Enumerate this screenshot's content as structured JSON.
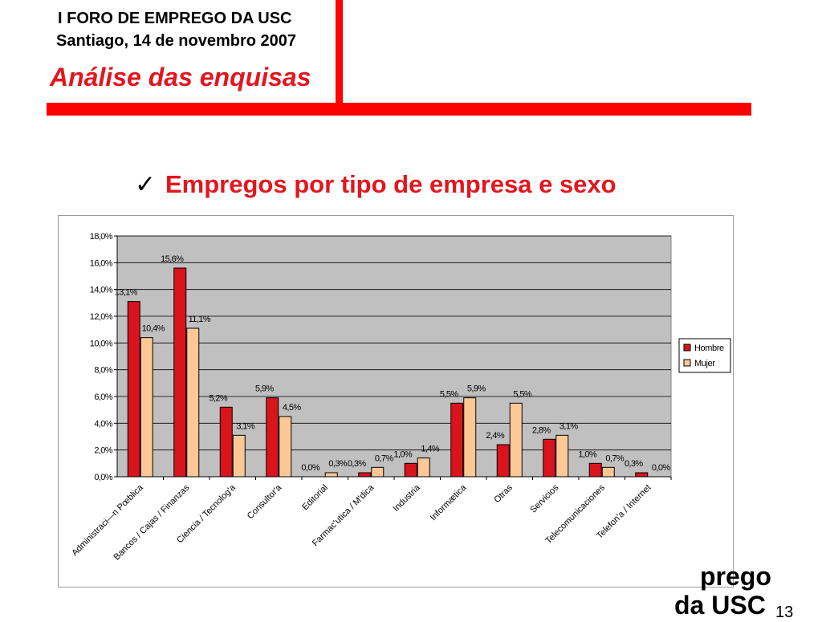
{
  "header": {
    "line1": "I FORO DE EMPREGO DA USC",
    "line2": "Santiago, 14 de novembro 2007",
    "title": "Análise das enquisas"
  },
  "subtitle": {
    "check": "✓",
    "text": "Empregos por tipo de empresa e sexo"
  },
  "footer": {
    "line1": "prego",
    "line2": "da USC",
    "page_number": "13"
  },
  "chart_data": {
    "type": "bar",
    "categories": [
      "Administraci—n Pœblica",
      "Bancos / Cajas / Finanzas",
      "Ciencia / Tecnolog'a",
      "Consultor'a",
      "Editorial",
      "Farmac'utica / M'dica",
      "Industria",
      "Informætica",
      "Otras",
      "Servicios",
      "Telecomunicaciones",
      "Telefon'a / Internet"
    ],
    "series": [
      {
        "name": "Hombre",
        "color": "#d9141c",
        "values": [
          13.1,
          15.6,
          5.2,
          5.9,
          0.0,
          0.3,
          1.0,
          5.5,
          2.4,
          2.8,
          1.0,
          0.3
        ],
        "labels": [
          "13,1%",
          "15,6%",
          "5,2%",
          "5,9%",
          "0,0%",
          "0,3%",
          "1,0%",
          "5,5%",
          "2,4%",
          "2,8%",
          "1,0%",
          "0,3%"
        ]
      },
      {
        "name": "Mujer",
        "color": "#fdc896",
        "values": [
          10.4,
          11.1,
          3.1,
          4.5,
          0.3,
          0.7,
          1.4,
          5.9,
          5.5,
          3.1,
          0.7,
          0.0
        ],
        "labels": [
          "10,4%",
          "11,1%",
          "3,1%",
          "4,5%",
          "0,3%",
          "0,7%",
          "1,4%",
          "5,9%",
          "5,5%",
          "3,1%",
          "0,7%",
          "0,0%"
        ]
      }
    ],
    "y_ticks": [
      0,
      2,
      4,
      6,
      8,
      10,
      12,
      14,
      16,
      18
    ],
    "y_tick_labels": [
      "0,0%",
      "2,0%",
      "4,0%",
      "6,0%",
      "8,0%",
      "10,0%",
      "12,0%",
      "14,0%",
      "16,0%",
      "18,0%"
    ],
    "ylim": [
      0,
      18
    ],
    "grid": true,
    "legend_position": "right",
    "plot_background": "#c0c0c0"
  }
}
